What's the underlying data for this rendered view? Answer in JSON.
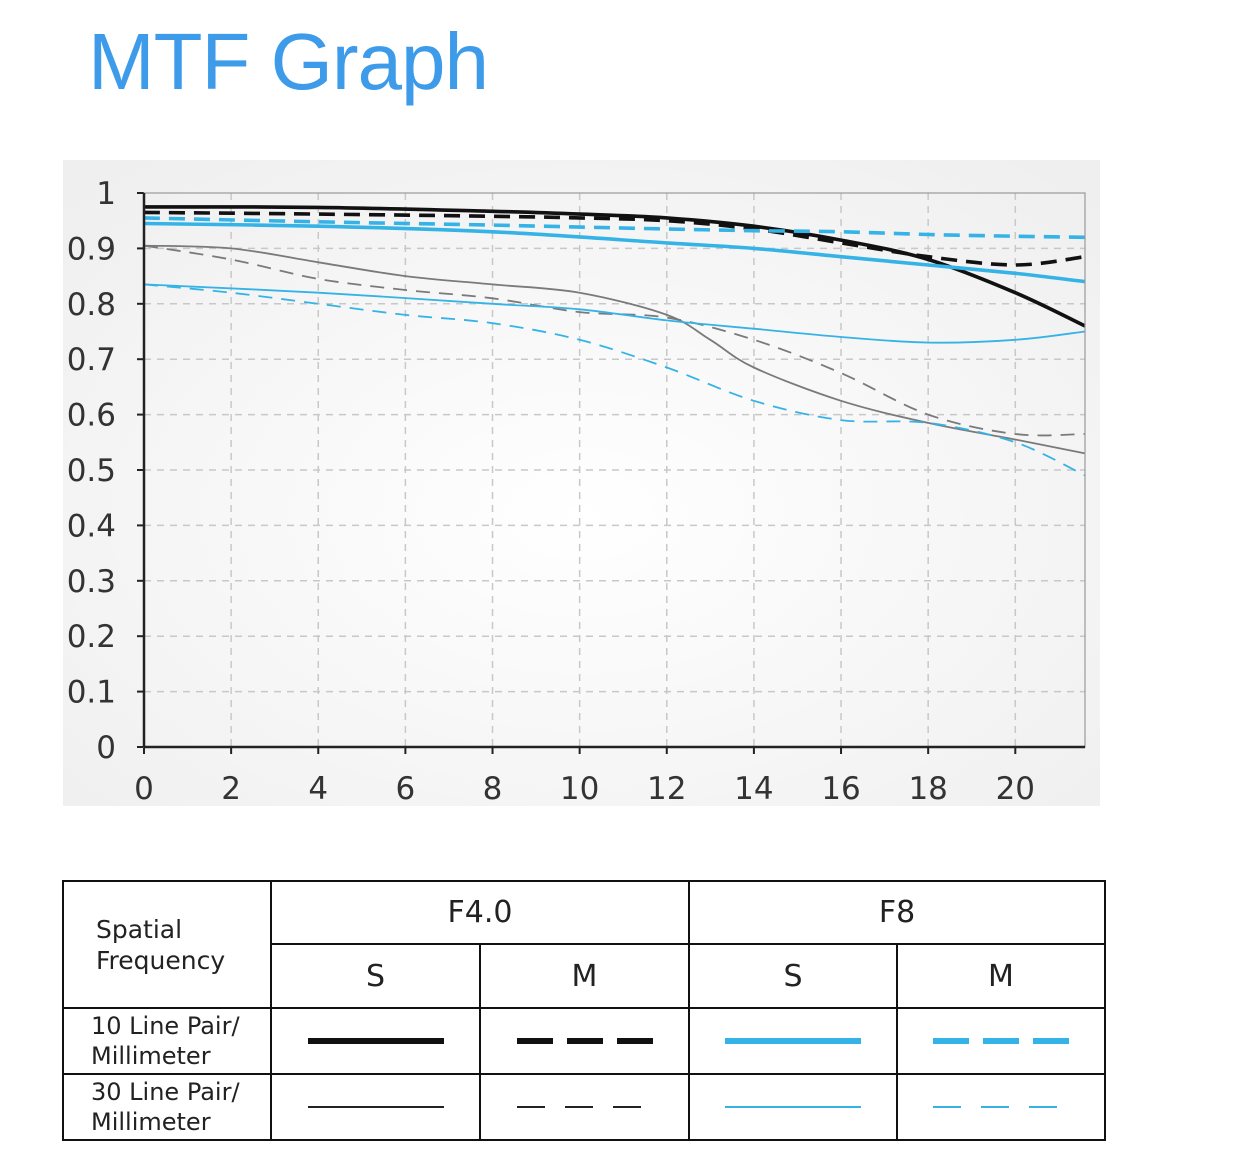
{
  "title": "MTF Graph",
  "colors": {
    "black_series": "#111111",
    "gray_series": "#7a7a7a",
    "blue_series": "#35b3e6",
    "title_blue": "#3d9be9",
    "grid": "#c8c8c8"
  },
  "chart_data": {
    "type": "line",
    "title": "",
    "xlabel": "",
    "ylabel": "",
    "xlim": [
      0,
      21.6
    ],
    "ylim": [
      0,
      1
    ],
    "xticks": [
      "0",
      "2",
      "4",
      "6",
      "8",
      "10",
      "12",
      "14",
      "16",
      "18",
      "20"
    ],
    "yticks": [
      "0",
      "0.1",
      "0.2",
      "0.3",
      "0.4",
      "0.5",
      "0.6",
      "0.7",
      "0.8",
      "0.9",
      "1"
    ],
    "grid": true,
    "series": [
      {
        "name": "10 Line Pair/Millimeter F4.0 S",
        "color": "black",
        "dash": "solid",
        "thick": true,
        "points": [
          [
            0,
            0.975
          ],
          [
            4,
            0.974
          ],
          [
            8,
            0.967
          ],
          [
            10,
            0.962
          ],
          [
            12,
            0.955
          ],
          [
            14,
            0.94
          ],
          [
            16,
            0.915
          ],
          [
            18,
            0.88
          ],
          [
            20,
            0.82
          ],
          [
            21.6,
            0.76
          ]
        ]
      },
      {
        "name": "10 Line Pair/Millimeter F4.0 M",
        "color": "black",
        "dash": "dashed",
        "thick": true,
        "points": [
          [
            0,
            0.965
          ],
          [
            4,
            0.962
          ],
          [
            8,
            0.958
          ],
          [
            10,
            0.955
          ],
          [
            12,
            0.95
          ],
          [
            14,
            0.935
          ],
          [
            16,
            0.91
          ],
          [
            18,
            0.885
          ],
          [
            20,
            0.87
          ],
          [
            21.6,
            0.885
          ]
        ]
      },
      {
        "name": "10 Line Pair/Millimeter F8 S",
        "color": "blue",
        "dash": "solid",
        "thick": true,
        "points": [
          [
            0,
            0.945
          ],
          [
            4,
            0.94
          ],
          [
            8,
            0.93
          ],
          [
            12,
            0.91
          ],
          [
            14,
            0.9
          ],
          [
            16,
            0.885
          ],
          [
            18,
            0.87
          ],
          [
            20,
            0.855
          ],
          [
            21.6,
            0.84
          ]
        ]
      },
      {
        "name": "10 Line Pair/Millimeter F8 M",
        "color": "blue",
        "dash": "dashed",
        "thick": true,
        "points": [
          [
            0,
            0.955
          ],
          [
            4,
            0.948
          ],
          [
            8,
            0.942
          ],
          [
            12,
            0.935
          ],
          [
            14,
            0.932
          ],
          [
            16,
            0.93
          ],
          [
            18,
            0.925
          ],
          [
            20,
            0.922
          ],
          [
            21.6,
            0.92
          ]
        ]
      },
      {
        "name": "30 Line Pair/Millimeter F4.0 S",
        "color": "gray",
        "dash": "solid",
        "thick": false,
        "points": [
          [
            0,
            0.905
          ],
          [
            2,
            0.9
          ],
          [
            4,
            0.875
          ],
          [
            6,
            0.85
          ],
          [
            8,
            0.835
          ],
          [
            10,
            0.82
          ],
          [
            12,
            0.78
          ],
          [
            13,
            0.735
          ],
          [
            14,
            0.685
          ],
          [
            16,
            0.625
          ],
          [
            18,
            0.585
          ],
          [
            20,
            0.555
          ],
          [
            21.6,
            0.53
          ]
        ]
      },
      {
        "name": "30 Line Pair/Millimeter F4.0 M",
        "color": "gray",
        "dash": "dashed",
        "thick": false,
        "points": [
          [
            0,
            0.905
          ],
          [
            2,
            0.88
          ],
          [
            4,
            0.845
          ],
          [
            6,
            0.825
          ],
          [
            8,
            0.81
          ],
          [
            10,
            0.785
          ],
          [
            12,
            0.775
          ],
          [
            14,
            0.735
          ],
          [
            16,
            0.675
          ],
          [
            18,
            0.6
          ],
          [
            20,
            0.565
          ],
          [
            21.6,
            0.565
          ]
        ]
      },
      {
        "name": "30 Line Pair/Millimeter F8 S",
        "color": "blue",
        "dash": "solid",
        "thick": false,
        "points": [
          [
            0,
            0.835
          ],
          [
            4,
            0.82
          ],
          [
            8,
            0.8
          ],
          [
            10,
            0.79
          ],
          [
            12,
            0.77
          ],
          [
            14,
            0.755
          ],
          [
            16,
            0.74
          ],
          [
            18,
            0.73
          ],
          [
            20,
            0.735
          ],
          [
            21.6,
            0.75
          ]
        ]
      },
      {
        "name": "30 Line Pair/Millimeter F8 M",
        "color": "blue",
        "dash": "dashed",
        "thick": false,
        "points": [
          [
            0,
            0.835
          ],
          [
            2,
            0.82
          ],
          [
            4,
            0.8
          ],
          [
            6,
            0.78
          ],
          [
            8,
            0.765
          ],
          [
            10,
            0.735
          ],
          [
            12,
            0.685
          ],
          [
            14,
            0.625
          ],
          [
            16,
            0.59
          ],
          [
            18,
            0.585
          ],
          [
            20,
            0.55
          ],
          [
            21.6,
            0.49
          ]
        ]
      }
    ]
  },
  "legend_table": {
    "corner_line1": "Spatial",
    "corner_line2": "Frequency",
    "aperture_1": "F4.0",
    "aperture_2": "F8",
    "col_s": "S",
    "col_m": "M",
    "row1_line1": "10 Line Pair/",
    "row1_line2": "Millimeter",
    "row2_line1": "30 Line Pair/",
    "row2_line2": "Millimeter"
  }
}
